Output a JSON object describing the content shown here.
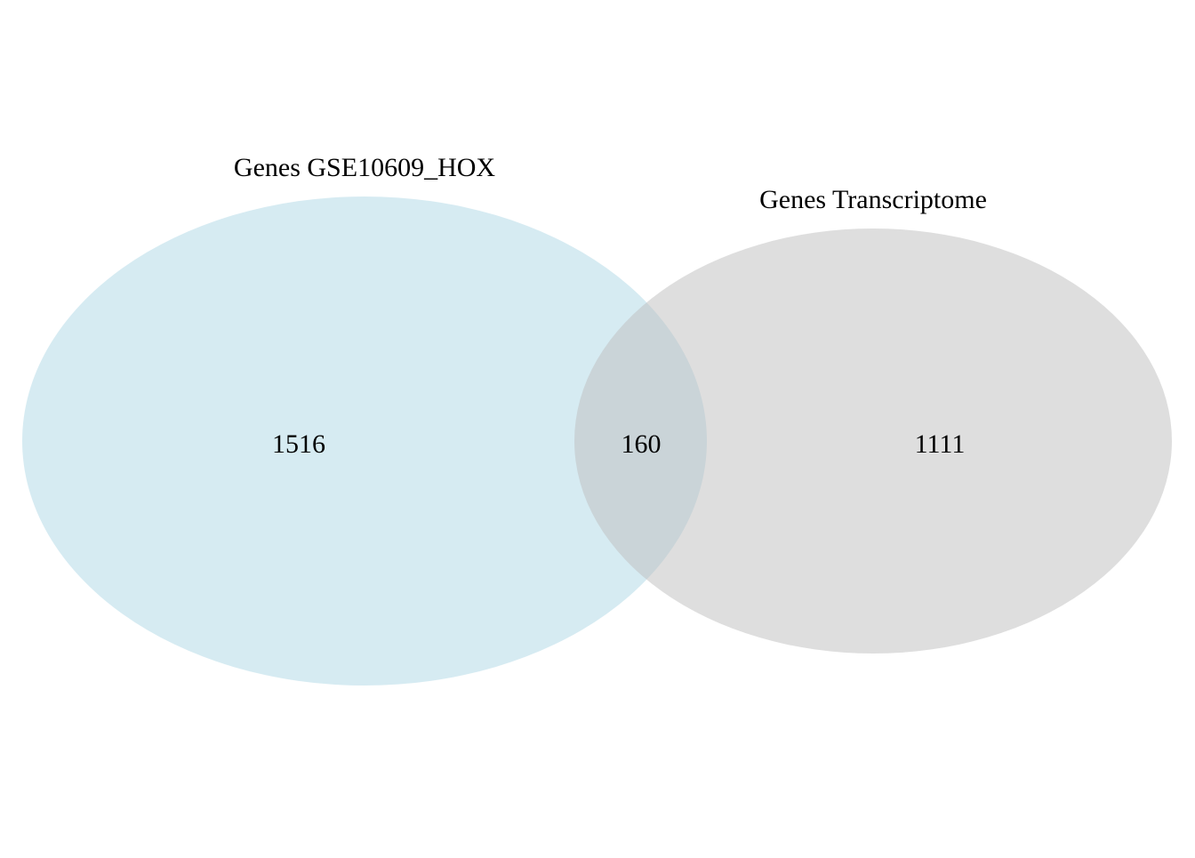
{
  "venn": {
    "sets": [
      {
        "label": "Genes GSE10609_HOX",
        "only_count": "1516",
        "color": "#add8e6"
      },
      {
        "label": "Genes Transcriptome",
        "only_count": "1111",
        "color": "#bebebe"
      }
    ],
    "intersection_count": "160",
    "fill_opacity": 0.5
  }
}
